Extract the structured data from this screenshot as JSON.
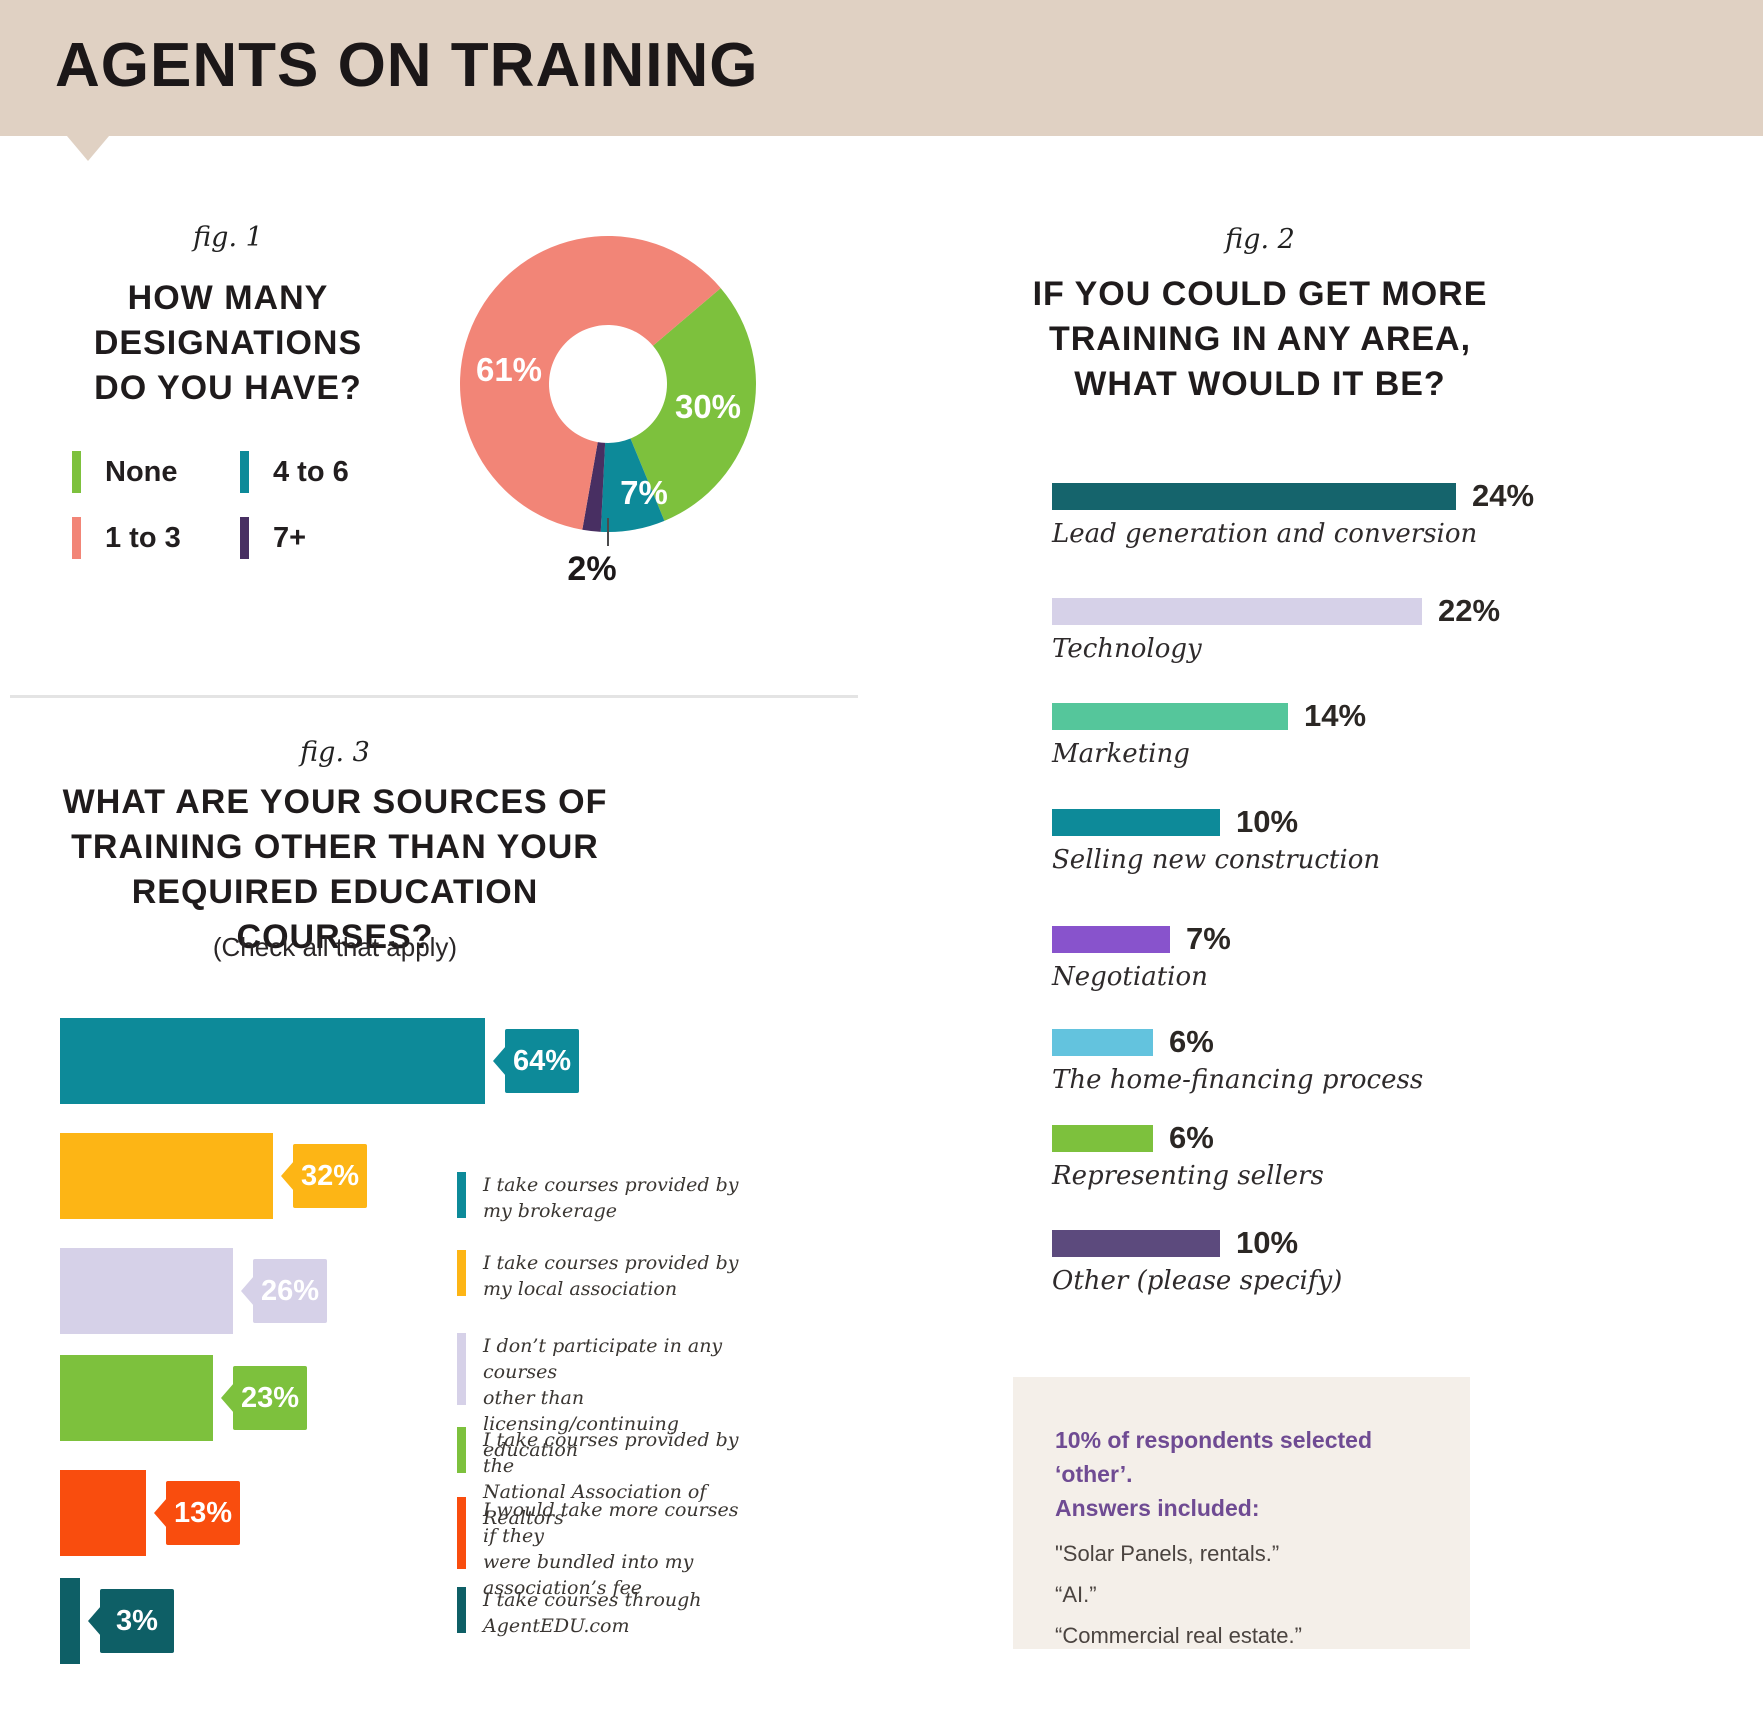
{
  "header": {
    "title": "AGENTS ON TRAINING"
  },
  "colors": {
    "header_band": "#e0d1c3",
    "green": "#7dc13d",
    "salmon": "#f28577",
    "teal": "#0d8a99",
    "plum": "#482f62",
    "note_purple": "#6f4b93",
    "note_bg": "#f4efe9"
  },
  "fig1": {
    "caption": "fig. 1",
    "title": "HOW MANY\nDESIGNATIONS\nDO YOU HAVE?",
    "legend": [
      {
        "label": "None",
        "color": "#7dc13d"
      },
      {
        "label": "1 to 3",
        "color": "#f28577"
      },
      {
        "label": "4 to 6",
        "color": "#0d8a99"
      },
      {
        "label": "7+",
        "color": "#482f62"
      }
    ]
  },
  "fig2": {
    "caption": "fig. 2",
    "title": "IF YOU COULD GET MORE\nTRAINING IN ANY AREA,\nWHAT WOULD IT BE?"
  },
  "fig3": {
    "caption": "fig. 3",
    "title": "WHAT ARE YOUR SOURCES OF\nTRAINING OTHER THAN YOUR\nREQUIRED EDUCATION COURSES?",
    "subtitle": "(Check all that apply)"
  },
  "note_box": {
    "heading": "10% of respondents selected ‘other’.\nAnswers included:",
    "answers": [
      "\"Solar Panels, rentals.”",
      "“AI.”",
      "“Commercial real estate.”"
    ]
  },
  "chart_data": [
    {
      "id": "designations-donut",
      "type": "pie",
      "title": "HOW MANY DESIGNATIONS DO YOU HAVE?",
      "rotation_deg": 49.6,
      "slices": [
        {
          "label": "None",
          "value": 30,
          "color": "#7dc13d"
        },
        {
          "label": "4 to 6",
          "value": 7,
          "color": "#0d8a99"
        },
        {
          "label": "7+",
          "value": 2,
          "color": "#482f62"
        },
        {
          "label": "1 to 3",
          "value": 61,
          "color": "#f28577"
        }
      ],
      "legend_position": "left",
      "donut_hole": true
    },
    {
      "id": "training-areas",
      "type": "bar",
      "orientation": "horizontal",
      "title": "IF YOU COULD GET MORE TRAINING IN ANY AREA, WHAT WOULD IT BE?",
      "categories": [
        "Lead generation and conversion",
        "Technology",
        "Marketing",
        "Selling new construction",
        "Negotiation",
        "The home-financing process",
        "Representing sellers",
        "Other (please specify)"
      ],
      "values": [
        24,
        22,
        14,
        10,
        7,
        6,
        6,
        10
      ],
      "colors": [
        "#15646c",
        "#d6d1e8",
        "#55c69b",
        "#0d8a99",
        "#8853cc",
        "#63c3de",
        "#7dc13d",
        "#5c4a7d"
      ],
      "value_suffix": "%",
      "xlim": [
        0,
        24
      ],
      "grid": false
    },
    {
      "id": "training-sources",
      "type": "bar",
      "orientation": "horizontal",
      "title": "WHAT ARE YOUR SOURCES OF TRAINING OTHER THAN YOUR REQUIRED EDUCATION COURSES?",
      "subtitle": "(Check all that apply)",
      "categories": [
        "I take courses provided by\nmy brokerage",
        "I take courses provided by\nmy local association",
        "I don’t participate in any courses\nother than licensing/continuing\neducation",
        "I take courses provided by the\nNational Association of Realtors",
        "I would take more courses if they\nwere bundled into my\nassociation’s fee",
        "I take courses through\nAgentEDU.com"
      ],
      "values": [
        64,
        32,
        26,
        23,
        13,
        3
      ],
      "colors": [
        "#0d8a99",
        "#fdb515",
        "#d6d1e8",
        "#7dc13d",
        "#f94d0e",
        "#0e5f66"
      ],
      "value_suffix": "%",
      "xlim": [
        0,
        64
      ],
      "grid": false,
      "legend_position": "right"
    }
  ]
}
